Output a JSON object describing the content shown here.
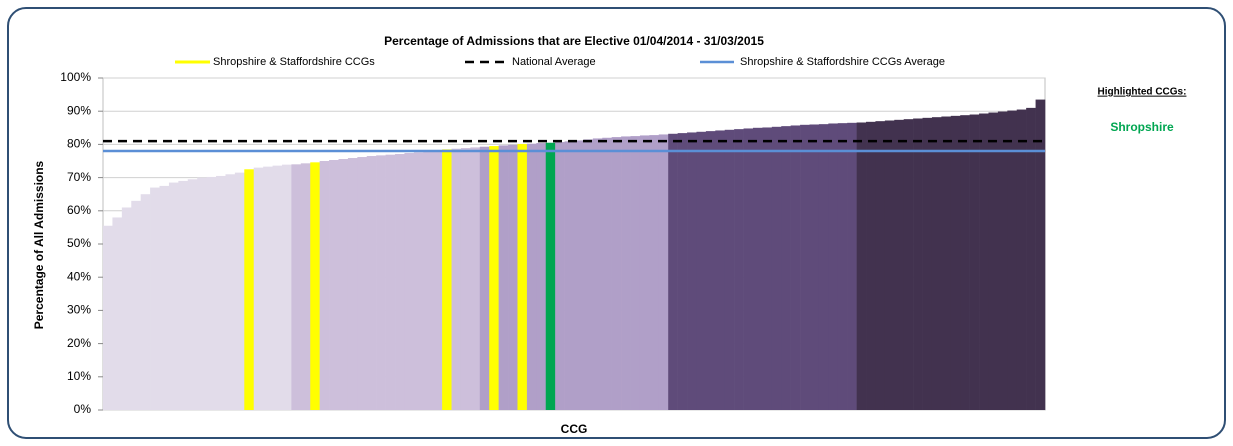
{
  "chart_data": {
    "type": "bar",
    "title": "Percentage of Admissions that are Elective 01/04/2014 - 31/03/2015",
    "y_label": "Percentage of All Admissions",
    "x_label": "CCG",
    "values": [
      55.5,
      58,
      61,
      63,
      65,
      67,
      67.5,
      68.5,
      69,
      69.5,
      70,
      70.2,
      70.5,
      71,
      71.5,
      72.5,
      73,
      73.3,
      73.6,
      73.9,
      74,
      74.3,
      74.6,
      75,
      75.3,
      75.6,
      75.9,
      76.2,
      76.5,
      76.7,
      76.9,
      77.1,
      77.4,
      77.6,
      77.9,
      78.2,
      78.5,
      78.7,
      78.9,
      79.1,
      79.3,
      79.5,
      79.7,
      79.9,
      80.1,
      80.2,
      80.4,
      80.5,
      80.7,
      80.9,
      81.2,
      81.5,
      81.8,
      82,
      82.2,
      82.4,
      82.5,
      82.7,
      82.8,
      83,
      83.2,
      83.4,
      83.6,
      83.8,
      84,
      84.2,
      84.4,
      84.6,
      84.8,
      85,
      85.1,
      85.3,
      85.5,
      85.7,
      85.9,
      86,
      86.1,
      86.3,
      86.4,
      86.5,
      86.6,
      86.8,
      87,
      87.2,
      87.4,
      87.6,
      87.8,
      88,
      88.2,
      88.4,
      88.6,
      88.8,
      89,
      89.3,
      89.6,
      89.9,
      90.2,
      90.5,
      91,
      93.5
    ],
    "colors": [
      "#e2dcea",
      "#e2dcea",
      "#e2dcea",
      "#e2dcea",
      "#e2dcea",
      "#e2dcea",
      "#e2dcea",
      "#e2dcea",
      "#e2dcea",
      "#e2dcea",
      "#e2dcea",
      "#e2dcea",
      "#e2dcea",
      "#e2dcea",
      "#e2dcea",
      "#ffff00",
      "#e2dcea",
      "#e2dcea",
      "#e2dcea",
      "#e2dcea",
      "#cdbfdb",
      "#cdbfdb",
      "#ffff00",
      "#cdbfdb",
      "#cdbfdb",
      "#cdbfdb",
      "#cdbfdb",
      "#cdbfdb",
      "#cdbfdb",
      "#cdbfdb",
      "#cdbfdb",
      "#cdbfdb",
      "#cdbfdb",
      "#cdbfdb",
      "#cdbfdb",
      "#cdbfdb",
      "#ffff00",
      "#cdbfdb",
      "#cdbfdb",
      "#cdbfdb",
      "#b09fc8",
      "#ffff00",
      "#b09fc8",
      "#b09fc8",
      "#ffff00",
      "#b09fc8",
      "#b09fc8",
      "#00a651",
      "#b09fc8",
      "#b09fc8",
      "#b09fc8",
      "#b09fc8",
      "#b09fc8",
      "#b09fc8",
      "#b09fc8",
      "#b09fc8",
      "#b09fc8",
      "#b09fc8",
      "#b09fc8",
      "#b09fc8",
      "#5f4b7a",
      "#5f4b7a",
      "#5f4b7a",
      "#5f4b7a",
      "#5f4b7a",
      "#5f4b7a",
      "#5f4b7a",
      "#5f4b7a",
      "#5f4b7a",
      "#5f4b7a",
      "#5f4b7a",
      "#5f4b7a",
      "#5f4b7a",
      "#5f4b7a",
      "#5f4b7a",
      "#5f4b7a",
      "#5f4b7a",
      "#5f4b7a",
      "#5f4b7a",
      "#5f4b7a",
      "#42324f",
      "#42324f",
      "#42324f",
      "#42324f",
      "#42324f",
      "#42324f",
      "#42324f",
      "#42324f",
      "#42324f",
      "#42324f",
      "#42324f",
      "#42324f",
      "#42324f",
      "#42324f",
      "#42324f",
      "#42324f",
      "#42324f",
      "#42324f",
      "#42324f",
      "#42324f"
    ],
    "highlight_legend": {
      "name": "Shropshire & Staffordshire CCGs",
      "color": "#ffff00"
    },
    "reference_lines": [
      {
        "name": "National Average",
        "value": 81,
        "color": "#000000",
        "dashed": true
      },
      {
        "name": "Shropshire & Staffordshire CCGs Average",
        "value": 78,
        "color": "#5b8fd6",
        "dashed": false
      }
    ],
    "ylim": [
      0,
      100
    ],
    "yticks": [
      {
        "value": 0,
        "label": "0%"
      },
      {
        "value": 10,
        "label": "10%"
      },
      {
        "value": 20,
        "label": "20%"
      },
      {
        "value": 30,
        "label": "30%"
      },
      {
        "value": 40,
        "label": "40%"
      },
      {
        "value": 50,
        "label": "50%"
      },
      {
        "value": 60,
        "label": "60%"
      },
      {
        "value": 70,
        "label": "70%"
      },
      {
        "value": 80,
        "label": "80%"
      },
      {
        "value": 90,
        "label": "90%"
      },
      {
        "value": 100,
        "label": "100%"
      }
    ],
    "grid": true,
    "side_panel": {
      "heading": "Highlighted CCGs:",
      "items": [
        {
          "label": "Shropshire",
          "color": "#00a651"
        }
      ]
    }
  }
}
